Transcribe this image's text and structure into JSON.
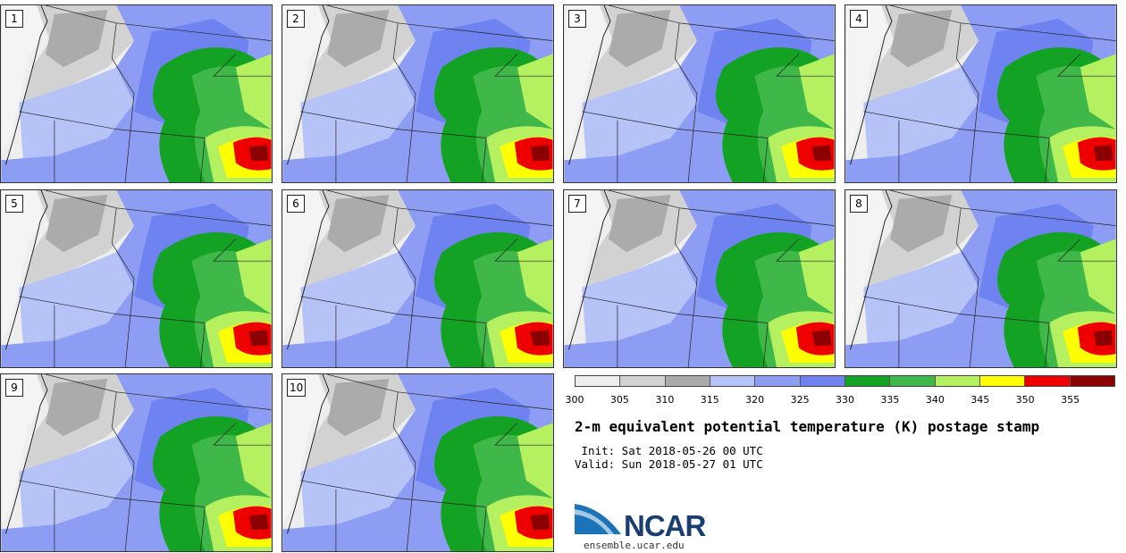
{
  "panels": [
    {
      "label": "1"
    },
    {
      "label": "2"
    },
    {
      "label": "3"
    },
    {
      "label": "4"
    },
    {
      "label": "5"
    },
    {
      "label": "6"
    },
    {
      "label": "7"
    },
    {
      "label": "8"
    },
    {
      "label": "9"
    },
    {
      "label": "10"
    }
  ],
  "colorbar": {
    "colors": [
      "#eeeeee",
      "#d2d2d2",
      "#ababab",
      "#b6c3f7",
      "#8c9df3",
      "#6f83f0",
      "#14a224",
      "#3fb849",
      "#b4f060",
      "#ffff00",
      "#ef0000",
      "#8b0000"
    ],
    "tick_labels": [
      "300",
      "305",
      "310",
      "315",
      "320",
      "325",
      "330",
      "335",
      "340",
      "345",
      "350",
      "355"
    ]
  },
  "title": "2-m equivalent potential temperature (K) postage stamp",
  "init_text": " Init: Sat 2018-05-26 00 UTC",
  "valid_text": "Valid: Sun 2018-05-27 01 UTC",
  "logo_text": "NCAR",
  "url_text": "ensemble.ucar.edu"
}
